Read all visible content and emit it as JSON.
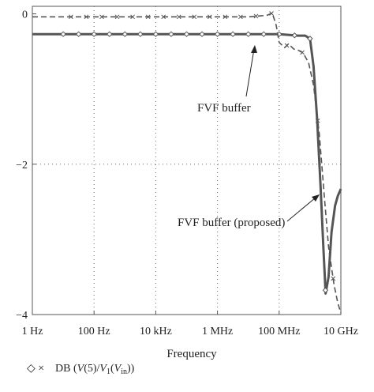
{
  "chart_data": {
    "type": "line",
    "xlabel": "Frequency",
    "ylabel": "",
    "x_scale": "log",
    "xlim_hz": [
      1,
      10000000000
    ],
    "ylim": [
      -4,
      0.1
    ],
    "grid": "dotted",
    "x_tick_labels": [
      "1 Hz",
      "100 Hz",
      "10 kHz",
      "1 MHz",
      "100 MHz",
      "10 GHz"
    ],
    "x_tick_values_hz": [
      1,
      100,
      10000,
      1000000,
      100000000,
      10000000000
    ],
    "y_tick_labels": [
      "0",
      "−2",
      "−4"
    ],
    "y_tick_values": [
      0,
      -2,
      -4
    ],
    "legend": {
      "markers": "◇ ×",
      "text_parts": [
        "DB (",
        "V",
        "(5)/",
        "V",
        "1",
        "(",
        "V",
        "in",
        "))"
      ]
    },
    "annotations": [
      {
        "text": "FVF buffer",
        "series": "solid"
      },
      {
        "text": "FVF buffer (proposed)",
        "series": "dashed"
      }
    ],
    "series": [
      {
        "style": "solid",
        "marker": "diamond",
        "x_hz": [
          1,
          100000,
          100000000,
          200000000,
          400000000,
          700000000,
          1000000000,
          1300000000,
          1700000000,
          2200000000,
          2700000000,
          3200000000,
          4000000000,
          5000000000,
          6500000000,
          8000000000,
          10000000000
        ],
        "y": [
          -0.27,
          -0.27,
          -0.27,
          -0.28,
          -0.29,
          -0.29,
          -0.33,
          -0.7,
          -1.4,
          -2.3,
          -3.1,
          -3.72,
          -3.5,
          -2.9,
          -2.55,
          -2.42,
          -2.33
        ]
      },
      {
        "style": "dashed",
        "marker": "cross",
        "x_hz": [
          1,
          10000000,
          40000000,
          60000000,
          80000000,
          100000000,
          150000000,
          200000000,
          300000000,
          400000000,
          600000000,
          900000000,
          1300000000,
          2000000000,
          3000000000,
          4000000000,
          6000000000,
          8000000000,
          10000000000
        ],
        "y": [
          -0.04,
          -0.04,
          -0.02,
          0.01,
          -0.15,
          -0.38,
          -0.45,
          -0.4,
          -0.47,
          -0.48,
          -0.52,
          -0.65,
          -0.95,
          -1.6,
          -2.5,
          -3.1,
          -3.6,
          -3.85,
          -3.98
        ]
      }
    ]
  }
}
